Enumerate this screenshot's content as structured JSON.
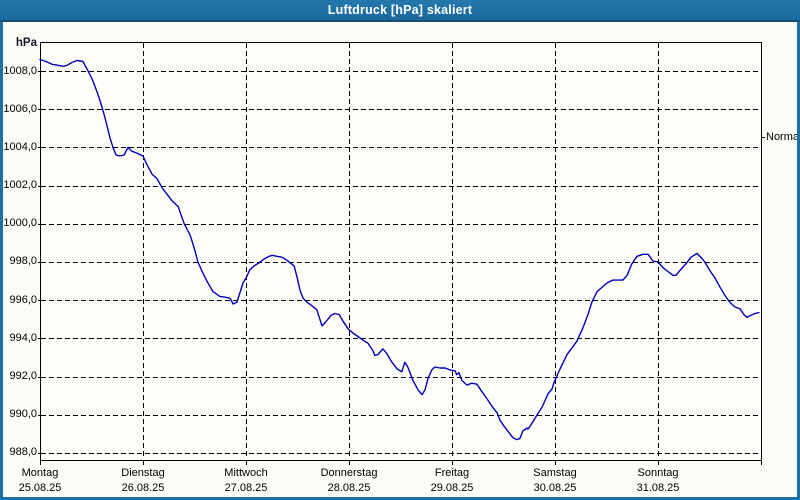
{
  "window": {
    "title": "Luftdruck [hPa] skaliert"
  },
  "colors": {
    "titlebar": "#1e6fa5",
    "frame": "#1e6fa5",
    "background": "#fcfcf6",
    "plot_background": "#fdfdf9",
    "grid": "#000000",
    "axis": "#000000",
    "line": "#0000bd",
    "text": "#000000"
  },
  "chart_data": {
    "type": "line",
    "title": "Luftdruck [hPa] skaliert",
    "xlabel": "",
    "ylabel": "hPa",
    "legend": "none",
    "y_axis": {
      "unit_label": "hPa",
      "ylim": [
        987.63,
        1009.52
      ],
      "grid_style": "dashed",
      "ticks": [
        {
          "value": 1008,
          "label": "1008,0"
        },
        {
          "value": 1006,
          "label": "1006,0"
        },
        {
          "value": 1004,
          "label": "1004,0"
        },
        {
          "value": 1002,
          "label": "1002,0"
        },
        {
          "value": 1000,
          "label": "1000,0"
        },
        {
          "value": 998,
          "label": "998,0"
        },
        {
          "value": 996,
          "label": "996,0"
        },
        {
          "value": 994,
          "label": "994,0"
        },
        {
          "value": 992,
          "label": "992,0"
        },
        {
          "value": 990,
          "label": "990,0"
        },
        {
          "value": 988,
          "label": "988,0"
        }
      ]
    },
    "x_axis": {
      "hours_total": 168,
      "grid_style": "dashed",
      "days": [
        {
          "weekday": "Montag",
          "date": "25.08.25"
        },
        {
          "weekday": "Dienstag",
          "date": "26.08.25"
        },
        {
          "weekday": "Mittwoch",
          "date": "27.08.25"
        },
        {
          "weekday": "Donnerstag",
          "date": "28.08.25"
        },
        {
          "weekday": "Freitag",
          "date": "29.08.25"
        },
        {
          "weekday": "Samstag",
          "date": "30.08.25"
        },
        {
          "weekday": "Sonntag",
          "date": "31.08.25"
        }
      ]
    },
    "right_axis_marker": {
      "label": "Normal",
      "value": 1004.55
    },
    "series": [
      {
        "name": "Luftdruck [hPa]",
        "color": "#0000bd",
        "points_hour_hpa": [
          [
            0,
            1008.6
          ],
          [
            1.4,
            1008.5
          ],
          [
            2.8,
            1008.35
          ],
          [
            4.2,
            1008.3
          ],
          [
            5.4,
            1008.25
          ],
          [
            6.3,
            1008.3
          ],
          [
            7.5,
            1008.45
          ],
          [
            8.6,
            1008.55
          ],
          [
            10,
            1008.5
          ],
          [
            11.2,
            1008.0
          ],
          [
            12.3,
            1007.5
          ],
          [
            13.3,
            1006.9
          ],
          [
            14.2,
            1006.3
          ],
          [
            15.1,
            1005.6
          ],
          [
            16.3,
            1004.5
          ],
          [
            17,
            1004.0
          ],
          [
            17.7,
            1003.6
          ],
          [
            18.6,
            1003.55
          ],
          [
            19.6,
            1003.6
          ],
          [
            20.5,
            1004.0
          ],
          [
            21.4,
            1003.8
          ],
          [
            22.6,
            1003.7
          ],
          [
            24,
            1003.55
          ],
          [
            24.9,
            1003.1
          ],
          [
            26.1,
            1002.6
          ],
          [
            27.3,
            1002.35
          ],
          [
            28.4,
            1001.9
          ],
          [
            29.6,
            1001.55
          ],
          [
            30.8,
            1001.2
          ],
          [
            32.2,
            1000.9
          ],
          [
            33.6,
            1000.0
          ],
          [
            35,
            999.4
          ],
          [
            36.1,
            998.6
          ],
          [
            36.8,
            998.0
          ],
          [
            38,
            997.4
          ],
          [
            38.9,
            997.0
          ],
          [
            40.3,
            996.45
          ],
          [
            41.9,
            996.2
          ],
          [
            43.3,
            996.15
          ],
          [
            44.3,
            996.1
          ],
          [
            45,
            995.8
          ],
          [
            45.9,
            995.9
          ],
          [
            46.6,
            996.4
          ],
          [
            47.3,
            996.9
          ],
          [
            48,
            997.15
          ],
          [
            48.9,
            997.6
          ],
          [
            49.9,
            997.8
          ],
          [
            51,
            997.95
          ],
          [
            52.2,
            998.15
          ],
          [
            53.4,
            998.3
          ],
          [
            54.1,
            998.35
          ],
          [
            55.2,
            998.3
          ],
          [
            56.4,
            998.25
          ],
          [
            57.5,
            998.1
          ],
          [
            58.3,
            997.95
          ],
          [
            59.2,
            997.8
          ],
          [
            59.9,
            997.2
          ],
          [
            60.6,
            996.5
          ],
          [
            61.3,
            996.1
          ],
          [
            62.2,
            995.9
          ],
          [
            63.4,
            995.7
          ],
          [
            64.5,
            995.5
          ],
          [
            65.7,
            994.65
          ],
          [
            66.9,
            994.95
          ],
          [
            67.8,
            995.2
          ],
          [
            68.7,
            995.3
          ],
          [
            69.7,
            995.25
          ],
          [
            70.6,
            994.9
          ],
          [
            71.8,
            994.5
          ],
          [
            72.9,
            994.28
          ],
          [
            74.1,
            994.1
          ],
          [
            75.3,
            993.9
          ],
          [
            76.4,
            993.75
          ],
          [
            77.6,
            993.35
          ],
          [
            78,
            993.1
          ],
          [
            78.7,
            993.15
          ],
          [
            79.9,
            993.45
          ],
          [
            80.8,
            993.2
          ],
          [
            82,
            992.75
          ],
          [
            83.2,
            992.4
          ],
          [
            84.3,
            992.25
          ],
          [
            85,
            992.75
          ],
          [
            85.7,
            992.5
          ],
          [
            86.9,
            991.8
          ],
          [
            88.1,
            991.3
          ],
          [
            89,
            991.05
          ],
          [
            89.7,
            991.3
          ],
          [
            90.4,
            991.9
          ],
          [
            91.3,
            992.35
          ],
          [
            92,
            992.5
          ],
          [
            93.2,
            992.45
          ],
          [
            94.4,
            992.45
          ],
          [
            95.5,
            992.35
          ],
          [
            96.7,
            992.3
          ],
          [
            97.1,
            992.1
          ],
          [
            97.6,
            992.2
          ],
          [
            98.3,
            991.8
          ],
          [
            99.5,
            991.55
          ],
          [
            100.6,
            991.65
          ],
          [
            101.8,
            991.6
          ],
          [
            103,
            991.2
          ],
          [
            104.1,
            990.85
          ],
          [
            105.3,
            990.45
          ],
          [
            106.5,
            990.1
          ],
          [
            107.2,
            989.7
          ],
          [
            108.3,
            989.35
          ],
          [
            109.5,
            989.0
          ],
          [
            110.2,
            988.8
          ],
          [
            111.1,
            988.7
          ],
          [
            111.8,
            988.75
          ],
          [
            112.5,
            989.15
          ],
          [
            113.5,
            989.3
          ],
          [
            113.7,
            989.25
          ],
          [
            114.2,
            989.4
          ],
          [
            115.3,
            989.8
          ],
          [
            116,
            990.05
          ],
          [
            117,
            990.4
          ],
          [
            117.7,
            990.75
          ],
          [
            118.4,
            991.1
          ],
          [
            119.3,
            991.35
          ],
          [
            119.8,
            991.7
          ],
          [
            121.2,
            992.4
          ],
          [
            122.8,
            993.15
          ],
          [
            125.1,
            993.85
          ],
          [
            126.5,
            994.55
          ],
          [
            127.7,
            995.25
          ],
          [
            128.6,
            995.9
          ],
          [
            129.8,
            996.45
          ],
          [
            132.1,
            996.9
          ],
          [
            133.5,
            997.05
          ],
          [
            135.8,
            997.05
          ],
          [
            136.8,
            997.3
          ],
          [
            137.9,
            997.9
          ],
          [
            139.1,
            998.3
          ],
          [
            140.5,
            998.4
          ],
          [
            141.7,
            998.4
          ],
          [
            142.8,
            998.05
          ],
          [
            144,
            998.0
          ],
          [
            145.2,
            997.7
          ],
          [
            146.3,
            997.5
          ],
          [
            147.5,
            997.3
          ],
          [
            148.2,
            997.3
          ],
          [
            149.3,
            997.6
          ],
          [
            150.5,
            997.9
          ],
          [
            151.7,
            998.25
          ],
          [
            153.1,
            998.45
          ],
          [
            154.2,
            998.2
          ],
          [
            154.9,
            998.0
          ],
          [
            156.1,
            997.55
          ],
          [
            157.3,
            997.15
          ],
          [
            158.4,
            996.7
          ],
          [
            159.6,
            996.25
          ],
          [
            160.7,
            995.9
          ],
          [
            161.9,
            995.65
          ],
          [
            163.1,
            995.55
          ],
          [
            164,
            995.25
          ],
          [
            164.7,
            995.1
          ],
          [
            165.6,
            995.2
          ],
          [
            166.6,
            995.3
          ],
          [
            167.5,
            995.35
          ]
        ]
      }
    ]
  }
}
